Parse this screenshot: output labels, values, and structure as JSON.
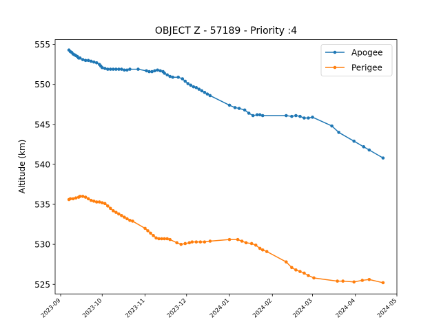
{
  "chart_data": {
    "type": "line",
    "title": "OBJECT Z - 57189 - Priority :4",
    "xlabel": "",
    "ylabel": "Altitude (km)",
    "xlim": [
      "2023-08-28",
      "2024-05-01"
    ],
    "ylim": [
      523.8,
      555.6
    ],
    "x_ticks": [
      "2023-09",
      "2023-10",
      "2023-11",
      "2023-12",
      "2024-01",
      "2024-02",
      "2024-03",
      "2024-04",
      "2024-05"
    ],
    "y_ticks": [
      525,
      530,
      535,
      540,
      545,
      550,
      555
    ],
    "grid": false,
    "legend": {
      "position": "top-right",
      "entries": [
        "Apogee",
        "Perigee"
      ]
    },
    "series": [
      {
        "name": "Apogee",
        "color": "#1f77b4",
        "points": [
          [
            "2023-09-07",
            554.3
          ],
          [
            "2023-09-08",
            554.1
          ],
          [
            "2023-09-09",
            554.0
          ],
          [
            "2023-09-10",
            553.8
          ],
          [
            "2023-09-11",
            553.7
          ],
          [
            "2023-09-12",
            553.6
          ],
          [
            "2023-09-13",
            553.5
          ],
          [
            "2023-09-14",
            553.3
          ],
          [
            "2023-09-15",
            553.3
          ],
          [
            "2023-09-17",
            553.1
          ],
          [
            "2023-09-19",
            553.0
          ],
          [
            "2023-09-21",
            553.0
          ],
          [
            "2023-09-23",
            552.9
          ],
          [
            "2023-09-25",
            552.8
          ],
          [
            "2023-09-27",
            552.7
          ],
          [
            "2023-09-29",
            552.5
          ],
          [
            "2023-09-30",
            552.3
          ],
          [
            "2023-10-01",
            552.1
          ],
          [
            "2023-10-03",
            552.0
          ],
          [
            "2023-10-05",
            551.9
          ],
          [
            "2023-10-07",
            551.9
          ],
          [
            "2023-10-09",
            551.9
          ],
          [
            "2023-10-11",
            551.9
          ],
          [
            "2023-10-13",
            551.9
          ],
          [
            "2023-10-15",
            551.9
          ],
          [
            "2023-10-17",
            551.8
          ],
          [
            "2023-10-19",
            551.8
          ],
          [
            "2023-10-21",
            551.9
          ],
          [
            "2023-10-27",
            551.9
          ],
          [
            "2023-11-02",
            551.7
          ],
          [
            "2023-11-04",
            551.6
          ],
          [
            "2023-11-06",
            551.6
          ],
          [
            "2023-11-08",
            551.7
          ],
          [
            "2023-11-10",
            551.8
          ],
          [
            "2023-11-12",
            551.7
          ],
          [
            "2023-11-14",
            551.6
          ],
          [
            "2023-11-15",
            551.4
          ],
          [
            "2023-11-17",
            551.2
          ],
          [
            "2023-11-19",
            551.0
          ],
          [
            "2023-11-21",
            550.9
          ],
          [
            "2023-11-25",
            550.9
          ],
          [
            "2023-11-28",
            550.7
          ],
          [
            "2023-11-30",
            550.4
          ],
          [
            "2023-12-02",
            550.1
          ],
          [
            "2023-12-04",
            549.9
          ],
          [
            "2023-12-06",
            549.7
          ],
          [
            "2023-12-08",
            549.6
          ],
          [
            "2023-12-10",
            549.4
          ],
          [
            "2023-12-12",
            549.2
          ],
          [
            "2023-12-14",
            549.0
          ],
          [
            "2023-12-16",
            548.8
          ],
          [
            "2023-12-18",
            548.6
          ],
          [
            "2024-01-01",
            547.4
          ],
          [
            "2024-01-05",
            547.1
          ],
          [
            "2024-01-08",
            547.0
          ],
          [
            "2024-01-12",
            546.8
          ],
          [
            "2024-01-15",
            546.4
          ],
          [
            "2024-01-18",
            546.1
          ],
          [
            "2024-01-21",
            546.2
          ],
          [
            "2024-01-23",
            546.2
          ],
          [
            "2024-01-25",
            546.1
          ],
          [
            "2024-02-11",
            546.1
          ],
          [
            "2024-02-15",
            546.0
          ],
          [
            "2024-02-18",
            546.1
          ],
          [
            "2024-02-21",
            546.0
          ],
          [
            "2024-02-24",
            545.8
          ],
          [
            "2024-02-27",
            545.8
          ],
          [
            "2024-03-01",
            545.9
          ],
          [
            "2024-03-15",
            544.8
          ],
          [
            "2024-03-20",
            544.0
          ],
          [
            "2024-03-31",
            542.9
          ],
          [
            "2024-04-07",
            542.2
          ],
          [
            "2024-04-11",
            541.8
          ],
          [
            "2024-04-21",
            540.8
          ]
        ]
      },
      {
        "name": "Perigee",
        "color": "#ff7f0e",
        "points": [
          [
            "2023-09-07",
            535.6
          ],
          [
            "2023-09-08",
            535.7
          ],
          [
            "2023-09-10",
            535.7
          ],
          [
            "2023-09-12",
            535.8
          ],
          [
            "2023-09-14",
            535.9
          ],
          [
            "2023-09-15",
            536.0
          ],
          [
            "2023-09-17",
            536.0
          ],
          [
            "2023-09-19",
            535.9
          ],
          [
            "2023-09-21",
            535.7
          ],
          [
            "2023-09-23",
            535.5
          ],
          [
            "2023-09-25",
            535.4
          ],
          [
            "2023-09-27",
            535.3
          ],
          [
            "2023-09-29",
            535.3
          ],
          [
            "2023-10-01",
            535.2
          ],
          [
            "2023-10-03",
            535.1
          ],
          [
            "2023-10-05",
            534.8
          ],
          [
            "2023-10-07",
            534.5
          ],
          [
            "2023-10-09",
            534.2
          ],
          [
            "2023-10-11",
            534.0
          ],
          [
            "2023-10-13",
            533.8
          ],
          [
            "2023-10-15",
            533.6
          ],
          [
            "2023-10-17",
            533.4
          ],
          [
            "2023-10-19",
            533.2
          ],
          [
            "2023-10-21",
            533.0
          ],
          [
            "2023-10-23",
            532.9
          ],
          [
            "2023-11-01",
            532.0
          ],
          [
            "2023-11-03",
            531.7
          ],
          [
            "2023-11-05",
            531.4
          ],
          [
            "2023-11-07",
            531.1
          ],
          [
            "2023-11-09",
            530.8
          ],
          [
            "2023-11-11",
            530.7
          ],
          [
            "2023-11-13",
            530.7
          ],
          [
            "2023-11-15",
            530.7
          ],
          [
            "2023-11-17",
            530.7
          ],
          [
            "2023-11-19",
            530.6
          ],
          [
            "2023-11-24",
            530.2
          ],
          [
            "2023-11-27",
            530.0
          ],
          [
            "2023-11-30",
            530.1
          ],
          [
            "2023-12-03",
            530.2
          ],
          [
            "2023-12-05",
            530.3
          ],
          [
            "2023-12-08",
            530.3
          ],
          [
            "2023-12-11",
            530.3
          ],
          [
            "2023-12-14",
            530.3
          ],
          [
            "2023-12-18",
            530.4
          ],
          [
            "2024-01-01",
            530.6
          ],
          [
            "2024-01-07",
            530.6
          ],
          [
            "2024-01-10",
            530.4
          ],
          [
            "2024-01-13",
            530.2
          ],
          [
            "2024-01-17",
            530.1
          ],
          [
            "2024-01-20",
            529.9
          ],
          [
            "2024-01-23",
            529.5
          ],
          [
            "2024-01-25",
            529.3
          ],
          [
            "2024-01-28",
            529.1
          ],
          [
            "2024-02-11",
            527.8
          ],
          [
            "2024-02-15",
            527.1
          ],
          [
            "2024-02-18",
            526.8
          ],
          [
            "2024-02-21",
            526.6
          ],
          [
            "2024-02-24",
            526.4
          ],
          [
            "2024-02-27",
            526.1
          ],
          [
            "2024-03-02",
            525.8
          ],
          [
            "2024-03-19",
            525.4
          ],
          [
            "2024-03-23",
            525.4
          ],
          [
            "2024-03-31",
            525.3
          ],
          [
            "2024-04-06",
            525.5
          ],
          [
            "2024-04-11",
            525.6
          ],
          [
            "2024-04-21",
            525.2
          ]
        ]
      }
    ]
  }
}
